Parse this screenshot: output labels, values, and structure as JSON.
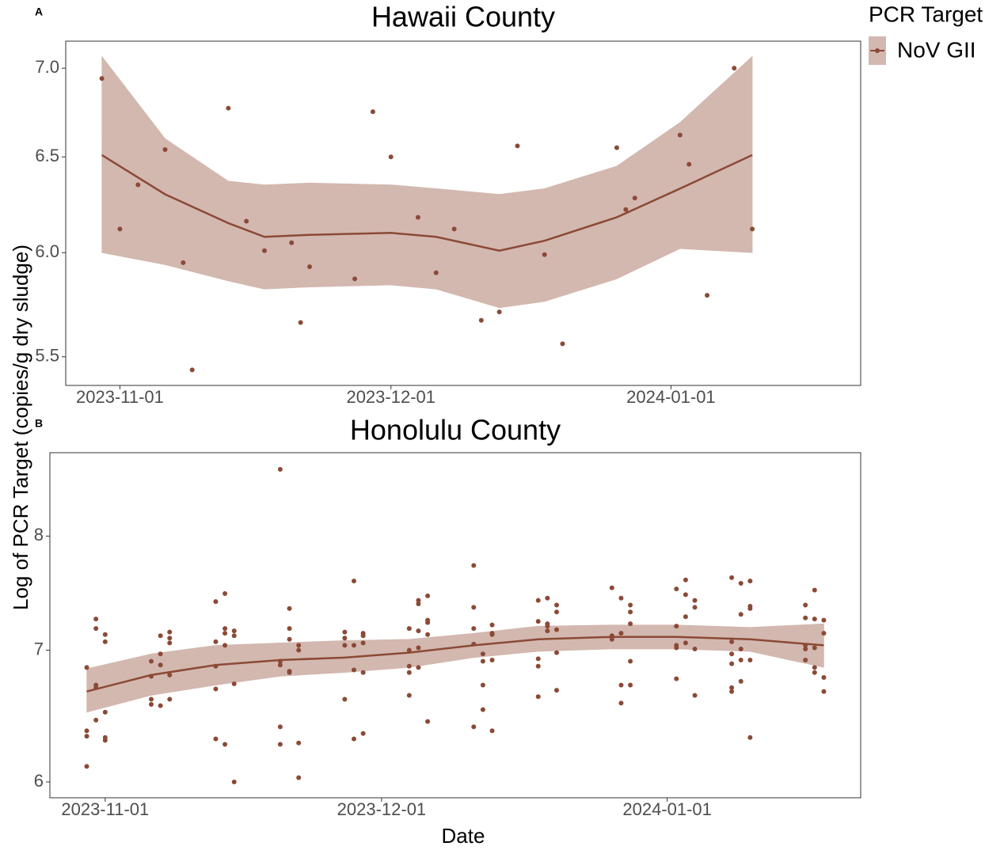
{
  "y_label": "Log of PCR Target (copies/g dry sludge)",
  "legend": {
    "title": "PCR Target",
    "name": "NoV GII",
    "color": "#8b4a36",
    "band_color": "#d3b8b0"
  },
  "chart_data": [
    {
      "type": "scatter",
      "tag": "A",
      "title": "Hawaii County",
      "log_y": true,
      "xlim": [
        "2023-10-26",
        "2024-01-22"
      ],
      "xticks": [
        "2023-11-01",
        "2023-12-01",
        "2024-01-01"
      ],
      "ylim": [
        5.37,
        7.16
      ],
      "yticks": [
        5.5,
        {
          "value": 6,
          "label": "6.0"
        },
        6.5,
        {
          "value": 7,
          "label": "7.0"
        }
      ],
      "x": [
        "2023-10-30",
        "2023-11-01",
        "2023-11-03",
        "2023-11-06",
        "2023-11-08",
        "2023-11-09",
        "2023-11-13",
        "2023-11-15",
        "2023-11-17",
        "2023-11-20",
        "2023-11-21",
        "2023-11-22",
        "2023-11-27",
        "2023-11-29",
        "2023-12-01",
        "2023-12-04",
        "2023-12-06",
        "2023-12-08",
        "2023-12-11",
        "2023-12-13",
        "2023-12-15",
        "2023-12-18",
        "2023-12-20",
        "2023-12-26",
        "2023-12-27",
        "2023-12-28",
        "2024-01-02",
        "2024-01-03",
        "2024-01-05",
        "2024-01-08",
        "2024-01-10"
      ],
      "values": [
        6.94,
        6.12,
        6.35,
        6.54,
        5.95,
        5.44,
        6.77,
        6.16,
        6.01,
        6.05,
        5.66,
        5.93,
        5.87,
        6.75,
        6.5,
        6.18,
        5.9,
        6.12,
        5.67,
        5.71,
        6.56,
        5.99,
        5.56,
        6.55,
        6.22,
        6.28,
        6.62,
        6.46,
        5.79,
        7.0,
        6.12
      ],
      "fit": {
        "x": [
          "2023-10-30",
          "2023-11-06",
          "2023-11-13",
          "2023-11-17",
          "2023-11-22",
          "2023-12-01",
          "2023-12-06",
          "2023-12-13",
          "2023-12-18",
          "2023-12-26",
          "2024-01-02",
          "2024-01-10"
        ],
        "values": [
          6.51,
          6.3,
          6.15,
          6.08,
          6.09,
          6.1,
          6.08,
          6.01,
          6.06,
          6.18,
          6.33,
          6.51
        ],
        "upper": [
          7.07,
          6.6,
          6.37,
          6.35,
          6.36,
          6.35,
          6.33,
          6.3,
          6.33,
          6.45,
          6.69,
          7.07
        ],
        "lower": [
          6.0,
          5.94,
          5.86,
          5.82,
          5.83,
          5.84,
          5.82,
          5.73,
          5.76,
          5.87,
          6.02,
          6.0
        ]
      }
    },
    {
      "type": "scatter",
      "tag": "B",
      "title": "Honolulu County",
      "x_label": "Date",
      "log_y": true,
      "xlim": [
        "2023-10-26",
        "2024-01-22"
      ],
      "xticks": [
        "2023-11-01",
        "2023-12-01",
        "2024-01-01"
      ],
      "ylim": [
        5.89,
        8.82
      ],
      "yticks": [
        6,
        7,
        8
      ],
      "x": [
        "2023-10-30",
        "2023-10-30",
        "2023-10-30",
        "2023-10-30",
        "2023-10-31",
        "2023-10-31",
        "2023-10-31",
        "2023-10-31",
        "2023-10-31",
        "2023-11-01",
        "2023-11-01",
        "2023-11-01",
        "2023-11-01",
        "2023-11-01",
        "2023-11-06",
        "2023-11-06",
        "2023-11-06",
        "2023-11-06",
        "2023-11-07",
        "2023-11-07",
        "2023-11-07",
        "2023-11-07",
        "2023-11-08",
        "2023-11-08",
        "2023-11-08",
        "2023-11-08",
        "2023-11-08",
        "2023-11-13",
        "2023-11-13",
        "2023-11-13",
        "2023-11-13",
        "2023-11-13",
        "2023-11-14",
        "2023-11-14",
        "2023-11-14",
        "2023-11-14",
        "2023-11-14",
        "2023-11-15",
        "2023-11-15",
        "2023-11-15",
        "2023-11-15",
        "2023-11-20",
        "2023-11-20",
        "2023-11-20",
        "2023-11-20",
        "2023-11-20",
        "2023-11-21",
        "2023-11-21",
        "2023-11-21",
        "2023-11-21",
        "2023-11-21",
        "2023-11-22",
        "2023-11-22",
        "2023-11-22",
        "2023-11-22",
        "2023-11-27",
        "2023-11-27",
        "2023-11-27",
        "2023-11-27",
        "2023-11-28",
        "2023-11-28",
        "2023-11-28",
        "2023-11-28",
        "2023-11-29",
        "2023-11-29",
        "2023-11-29",
        "2023-11-29",
        "2023-11-29",
        "2023-12-04",
        "2023-12-04",
        "2023-12-04",
        "2023-12-04",
        "2023-12-04",
        "2023-12-05",
        "2023-12-05",
        "2023-12-05",
        "2023-12-05",
        "2023-12-05",
        "2023-12-06",
        "2023-12-06",
        "2023-12-06",
        "2023-12-06",
        "2023-12-06",
        "2023-12-11",
        "2023-12-11",
        "2023-12-11",
        "2023-12-11",
        "2023-12-11",
        "2023-12-12",
        "2023-12-12",
        "2023-12-12",
        "2023-12-12",
        "2023-12-13",
        "2023-12-13",
        "2023-12-13",
        "2023-12-13",
        "2023-12-13",
        "2023-12-18",
        "2023-12-18",
        "2023-12-18",
        "2023-12-18",
        "2023-12-18",
        "2023-12-19",
        "2023-12-19",
        "2023-12-19",
        "2023-12-19",
        "2023-12-20",
        "2023-12-20",
        "2023-12-20",
        "2023-12-20",
        "2023-12-20",
        "2023-12-26",
        "2023-12-26",
        "2023-12-26",
        "2023-12-27",
        "2023-12-27",
        "2023-12-27",
        "2023-12-27",
        "2023-12-28",
        "2023-12-28",
        "2023-12-28",
        "2023-12-28",
        "2023-12-28",
        "2024-01-02",
        "2024-01-02",
        "2024-01-02",
        "2024-01-02",
        "2024-01-02",
        "2024-01-03",
        "2024-01-03",
        "2024-01-03",
        "2024-01-03",
        "2024-01-04",
        "2024-01-04",
        "2024-01-04",
        "2024-01-04",
        "2024-01-08",
        "2024-01-08",
        "2024-01-08",
        "2024-01-08",
        "2024-01-08",
        "2024-01-08",
        "2024-01-09",
        "2024-01-09",
        "2024-01-09",
        "2024-01-09",
        "2024-01-09",
        "2024-01-10",
        "2024-01-10",
        "2024-01-10",
        "2024-01-10",
        "2024-01-10",
        "2024-01-16",
        "2024-01-16",
        "2024-01-16",
        "2024-01-16",
        "2024-01-16",
        "2024-01-17",
        "2024-01-17",
        "2024-01-17",
        "2024-01-17",
        "2024-01-17",
        "2024-01-18",
        "2024-01-18",
        "2024-01-18",
        "2024-01-18"
      ],
      "values": [
        6.86,
        6.37,
        6.33,
        6.11,
        7.26,
        7.18,
        6.72,
        6.7,
        6.45,
        7.13,
        7.07,
        6.51,
        6.32,
        6.3,
        6.91,
        6.79,
        6.61,
        6.57,
        7.12,
        6.97,
        6.88,
        6.56,
        7.15,
        7.1,
        7.06,
        6.8,
        6.61,
        7.41,
        7.07,
        6.87,
        6.69,
        6.31,
        7.48,
        7.18,
        7.14,
        7.04,
        6.27,
        7.16,
        7.12,
        6.73,
        6.0,
        8.65,
        6.91,
        6.88,
        6.4,
        6.27,
        7.35,
        7.18,
        7.09,
        6.83,
        6.82,
        7.04,
        7.0,
        6.28,
        6.03,
        7.15,
        7.1,
        7.04,
        6.61,
        7.59,
        7.04,
        6.84,
        6.31,
        7.14,
        7.12,
        7.06,
        6.82,
        6.35,
        7.18,
        7.0,
        6.87,
        6.82,
        6.64,
        7.42,
        7.39,
        7.16,
        7.02,
        6.86,
        7.46,
        7.25,
        7.23,
        7.13,
        6.44,
        7.73,
        7.36,
        7.18,
        7.05,
        6.4,
        6.97,
        6.91,
        6.72,
        6.53,
        7.21,
        7.14,
        7.13,
        6.92,
        6.37,
        7.42,
        7.24,
        6.93,
        6.87,
        6.63,
        7.44,
        7.22,
        7.2,
        7.16,
        7.38,
        7.32,
        7.17,
        6.98,
        6.68,
        7.53,
        7.12,
        7.09,
        7.44,
        7.14,
        6.72,
        6.58,
        7.38,
        7.32,
        7.22,
        6.91,
        6.72,
        7.52,
        7.2,
        7.04,
        7.02,
        6.77,
        7.6,
        7.47,
        7.28,
        7.06,
        7.42,
        7.36,
        7.01,
        6.64,
        7.62,
        7.07,
        6.97,
        6.89,
        6.7,
        6.67,
        7.57,
        7.3,
        7.01,
        6.92,
        6.75,
        7.59,
        7.37,
        7.35,
        6.92,
        6.32,
        7.38,
        7.27,
        7.04,
        7.01,
        6.92,
        7.51,
        7.26,
        7.02,
        6.86,
        6.82,
        7.25,
        7.14,
        6.78,
        6.67
      ],
      "fit": {
        "x": [
          "2023-10-30",
          "2023-11-06",
          "2023-11-13",
          "2023-11-20",
          "2023-11-27",
          "2023-12-04",
          "2023-12-11",
          "2023-12-18",
          "2023-12-26",
          "2024-01-02",
          "2024-01-10",
          "2024-01-18"
        ],
        "values": [
          6.67,
          6.8,
          6.88,
          6.92,
          6.94,
          6.98,
          7.04,
          7.09,
          7.11,
          7.11,
          7.09,
          7.04
        ],
        "upper": [
          6.85,
          6.97,
          7.04,
          7.06,
          7.08,
          7.09,
          7.14,
          7.2,
          7.21,
          7.21,
          7.19,
          7.22
        ],
        "lower": [
          6.51,
          6.64,
          6.72,
          6.79,
          6.82,
          6.86,
          6.94,
          6.99,
          7.01,
          7.01,
          6.99,
          6.86
        ]
      }
    }
  ]
}
